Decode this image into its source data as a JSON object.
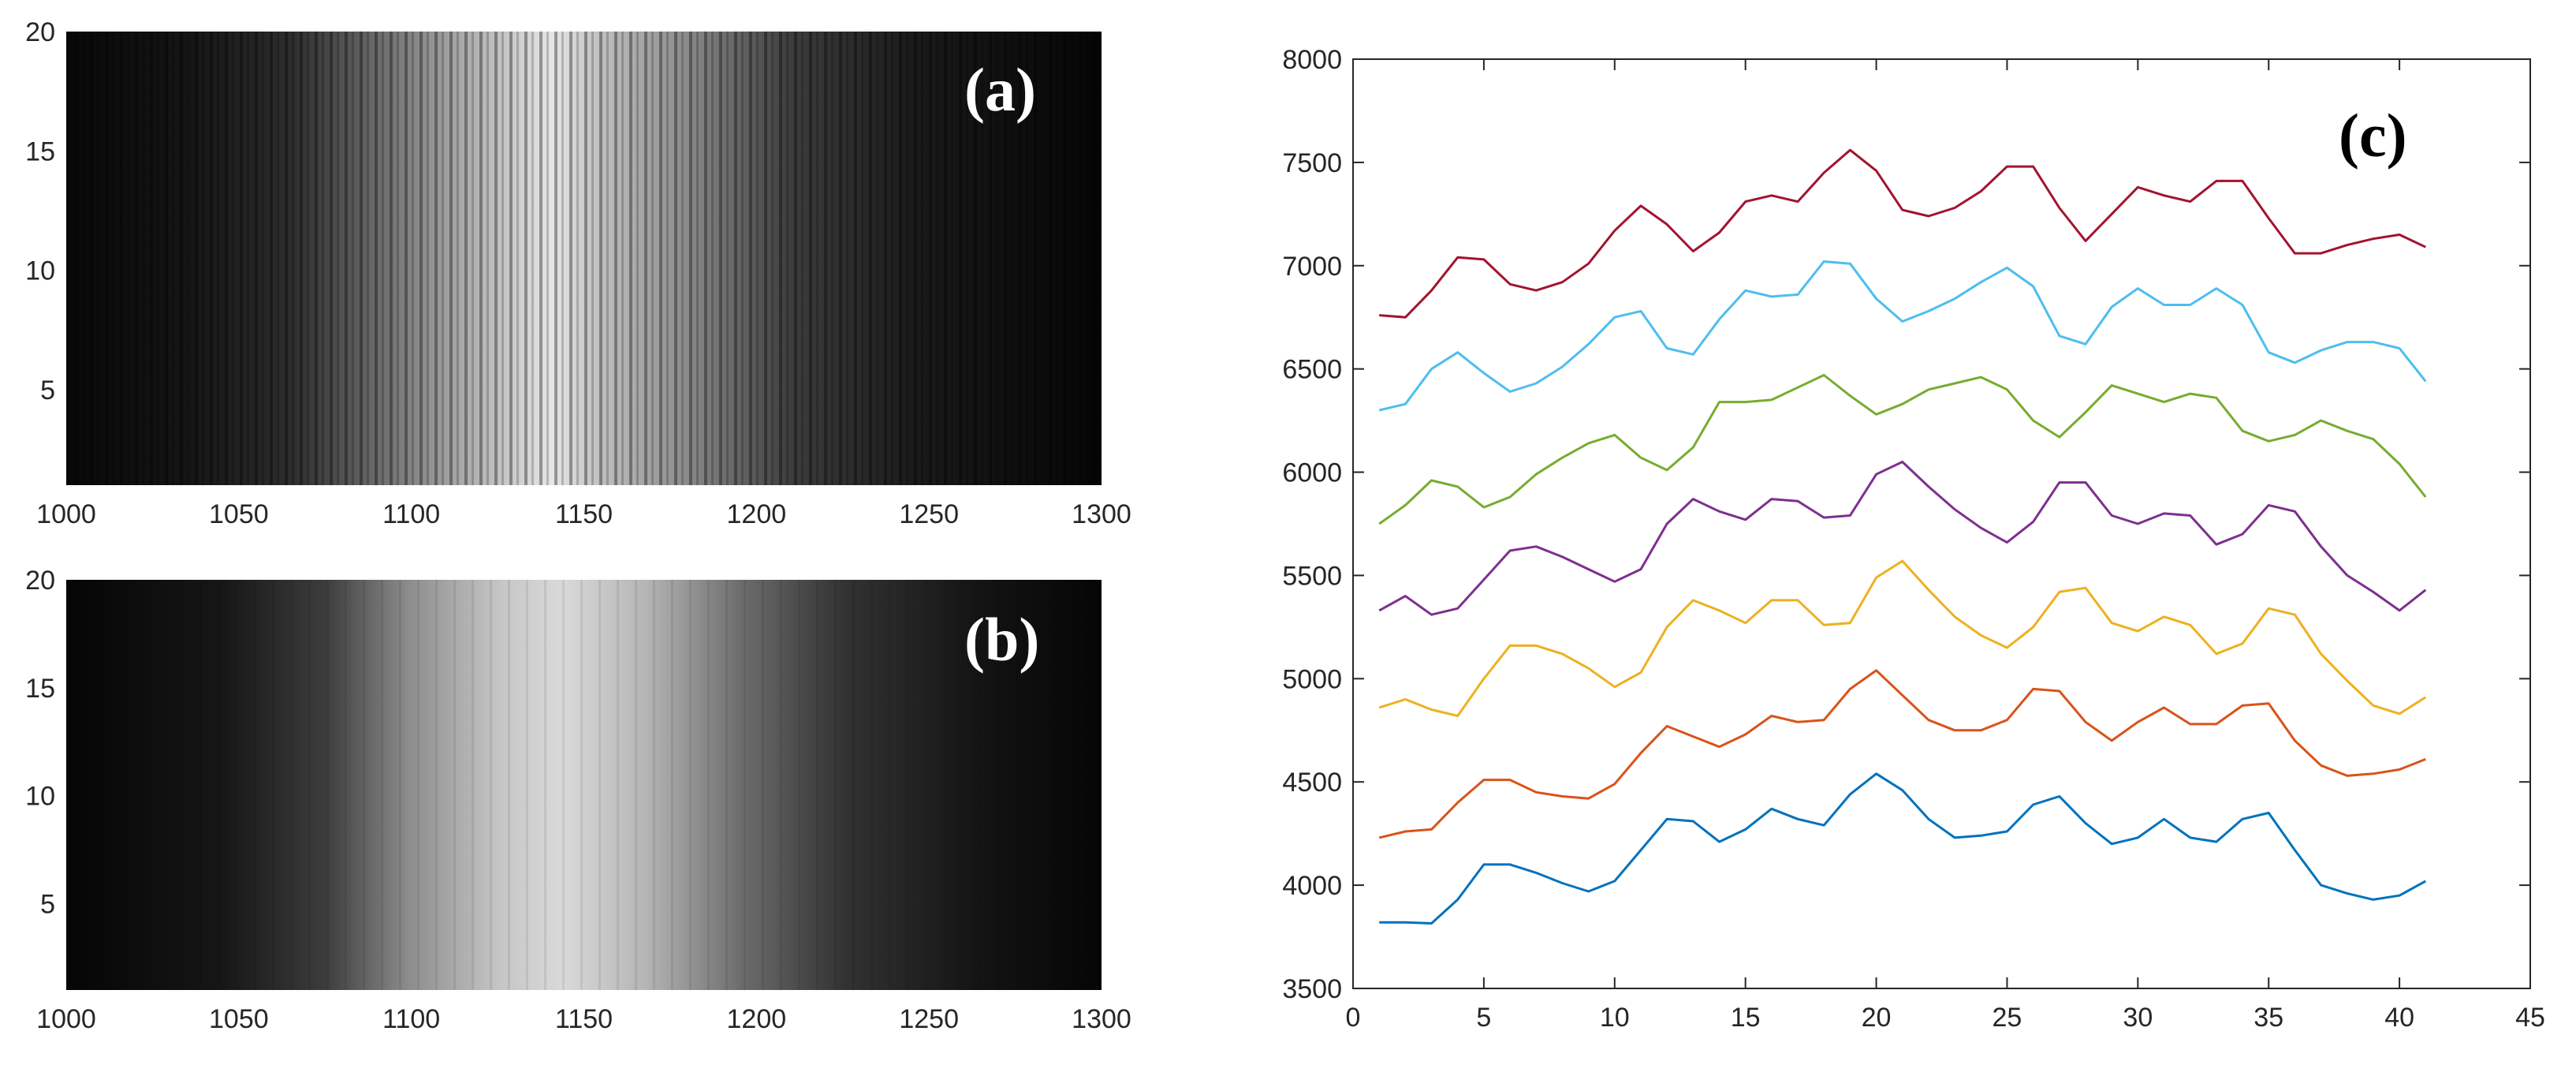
{
  "chart_data": [
    {
      "type": "heatmap",
      "panel_label": "(a)",
      "x_ticks": [
        1000,
        1050,
        1100,
        1150,
        1200,
        1250,
        1300
      ],
      "y_ticks": [
        5,
        10,
        15,
        20
      ],
      "xlim": [
        1000,
        1300
      ],
      "ylim": [
        1,
        20
      ],
      "colormap": "gray",
      "grid": false
    },
    {
      "type": "heatmap",
      "panel_label": "(b)",
      "x_ticks": [
        1000,
        1050,
        1100,
        1150,
        1200,
        1250,
        1300
      ],
      "y_ticks": [
        5,
        10,
        15,
        20
      ],
      "xlim": [
        1000,
        1300
      ],
      "ylim": [
        1,
        20
      ],
      "colormap": "gray",
      "grid": false
    },
    {
      "type": "line",
      "panel_label": "(c)",
      "xlim": [
        0,
        45
      ],
      "ylim": [
        3500,
        8000
      ],
      "x_ticks": [
        0,
        5,
        10,
        15,
        20,
        25,
        30,
        35,
        40,
        45
      ],
      "y_ticks": [
        3500,
        4000,
        4500,
        5000,
        5500,
        6000,
        6500,
        7000,
        7500,
        8000
      ],
      "grid": false,
      "x": [
        1,
        2,
        3,
        4,
        5,
        6,
        7,
        8,
        9,
        10,
        11,
        12,
        13,
        14,
        15,
        16,
        17,
        18,
        19,
        20,
        21,
        22,
        23,
        24,
        25,
        26,
        27,
        28,
        29,
        30,
        31,
        32,
        33,
        34,
        35,
        36,
        37,
        38,
        39,
        40,
        41
      ],
      "series": [
        {
          "color": "#0072BD",
          "values": [
            3820,
            3820,
            3815,
            3930,
            4100,
            4100,
            4060,
            4010,
            3970,
            4020,
            4170,
            4320,
            4310,
            4210,
            4270,
            4370,
            4320,
            4290,
            4440,
            4540,
            4460,
            4320,
            4230,
            4240,
            4260,
            4390,
            4430,
            4300,
            4200,
            4230,
            4320,
            4230,
            4210,
            4320,
            4350,
            4170,
            4000,
            3960,
            3930,
            3950,
            4020
          ]
        },
        {
          "color": "#D95319",
          "values": [
            4230,
            4260,
            4270,
            4400,
            4510,
            4510,
            4450,
            4430,
            4420,
            4490,
            4640,
            4770,
            4720,
            4670,
            4730,
            4820,
            4790,
            4800,
            4950,
            5040,
            4920,
            4800,
            4750,
            4750,
            4800,
            4950,
            4940,
            4790,
            4700,
            4790,
            4860,
            4780,
            4780,
            4870,
            4880,
            4700,
            4580,
            4530,
            4540,
            4560,
            4610
          ]
        },
        {
          "color": "#EDB120",
          "values": [
            4860,
            4900,
            4850,
            4820,
            5000,
            5160,
            5160,
            5120,
            5050,
            4960,
            5030,
            5250,
            5380,
            5330,
            5270,
            5380,
            5380,
            5260,
            5270,
            5490,
            5570,
            5430,
            5300,
            5210,
            5150,
            5250,
            5420,
            5440,
            5270,
            5230,
            5300,
            5260,
            5120,
            5170,
            5340,
            5310,
            5120,
            4990,
            4870,
            4830,
            4910
          ]
        },
        {
          "color": "#7E2F8E",
          "values": [
            5330,
            5400,
            5310,
            5340,
            5480,
            5620,
            5640,
            5590,
            5530,
            5470,
            5530,
            5750,
            5870,
            5810,
            5770,
            5870,
            5860,
            5780,
            5790,
            5990,
            6050,
            5930,
            5820,
            5730,
            5660,
            5760,
            5950,
            5950,
            5790,
            5750,
            5800,
            5790,
            5650,
            5700,
            5840,
            5810,
            5640,
            5500,
            5420,
            5330,
            5430
          ]
        },
        {
          "color": "#77AC30",
          "values": [
            5750,
            5840,
            5960,
            5930,
            5830,
            5880,
            5990,
            6070,
            6140,
            6180,
            6070,
            6010,
            6120,
            6340,
            6340,
            6350,
            6410,
            6470,
            6370,
            6280,
            6330,
            6400,
            6430,
            6460,
            6400,
            6250,
            6170,
            6290,
            6420,
            6380,
            6340,
            6380,
            6360,
            6200,
            6150,
            6180,
            6250,
            6200,
            6160,
            6040,
            5880
          ]
        },
        {
          "color": "#4DBEEE",
          "values": [
            6300,
            6330,
            6500,
            6580,
            6480,
            6390,
            6430,
            6510,
            6620,
            6750,
            6780,
            6600,
            6570,
            6740,
            6880,
            6850,
            6860,
            7020,
            7010,
            6840,
            6730,
            6780,
            6840,
            6920,
            6990,
            6900,
            6660,
            6620,
            6800,
            6890,
            6810,
            6810,
            6890,
            6810,
            6580,
            6530,
            6590,
            6630,
            6630,
            6600,
            6440
          ]
        },
        {
          "color": "#A2142F",
          "values": [
            6760,
            6750,
            6880,
            7040,
            7030,
            6910,
            6880,
            6920,
            7010,
            7170,
            7290,
            7200,
            7070,
            7160,
            7310,
            7340,
            7310,
            7450,
            7560,
            7460,
            7270,
            7240,
            7280,
            7360,
            7480,
            7480,
            7280,
            7120,
            7250,
            7380,
            7340,
            7310,
            7410,
            7410,
            7230,
            7060,
            7060,
            7100,
            7130,
            7150,
            7090
          ]
        }
      ]
    }
  ]
}
